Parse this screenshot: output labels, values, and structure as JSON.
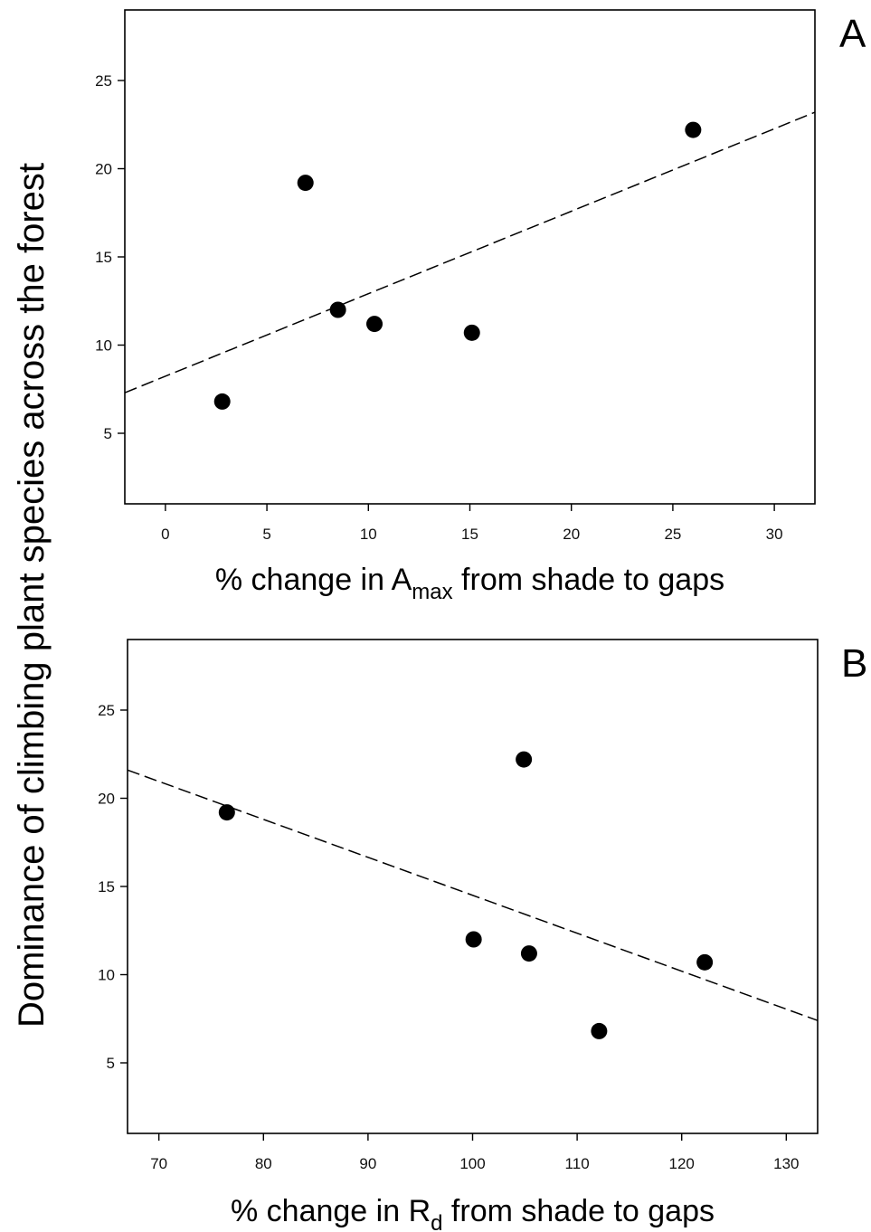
{
  "figure": {
    "ylabel": "Dominance of climbing plant species across the forest"
  },
  "chart_data": [
    {
      "type": "scatter",
      "panel_label": "A",
      "xlabel_pre": "% change in A",
      "xlabel_sub": "max",
      "xlabel_post": " from shade to gaps",
      "xlim": [
        -2,
        32
      ],
      "ylim": [
        1,
        29
      ],
      "xticks": [
        0,
        5,
        10,
        15,
        20,
        25,
        30
      ],
      "yticks": [
        5,
        10,
        15,
        20,
        25
      ],
      "points": [
        {
          "x": 2.8,
          "y": 6.8
        },
        {
          "x": 6.9,
          "y": 19.2
        },
        {
          "x": 8.5,
          "y": 12.0
        },
        {
          "x": 10.3,
          "y": 11.2
        },
        {
          "x": 15.1,
          "y": 10.7
        },
        {
          "x": 26.0,
          "y": 22.2
        }
      ],
      "trendline": {
        "style": "dashed",
        "x": [
          -2,
          32
        ],
        "y": [
          7.3,
          23.2
        ]
      },
      "grid": false,
      "legend": "none"
    },
    {
      "type": "scatter",
      "panel_label": "B",
      "xlabel_pre": "% change in R",
      "xlabel_sub": "d",
      "xlabel_post": " from shade to gaps",
      "xlim": [
        67,
        133
      ],
      "ylim": [
        1,
        29
      ],
      "xticks": [
        70,
        80,
        90,
        100,
        110,
        120,
        130
      ],
      "yticks": [
        5,
        10,
        15,
        20,
        25
      ],
      "points": [
        {
          "x": 76.5,
          "y": 19.2
        },
        {
          "x": 100.1,
          "y": 12.0
        },
        {
          "x": 104.9,
          "y": 22.2
        },
        {
          "x": 105.4,
          "y": 11.2
        },
        {
          "x": 112.1,
          "y": 6.8
        },
        {
          "x": 122.2,
          "y": 10.7
        }
      ],
      "trendline": {
        "style": "dashed",
        "x": [
          67,
          133
        ],
        "y": [
          21.6,
          7.4
        ]
      },
      "grid": false,
      "legend": "none"
    }
  ]
}
